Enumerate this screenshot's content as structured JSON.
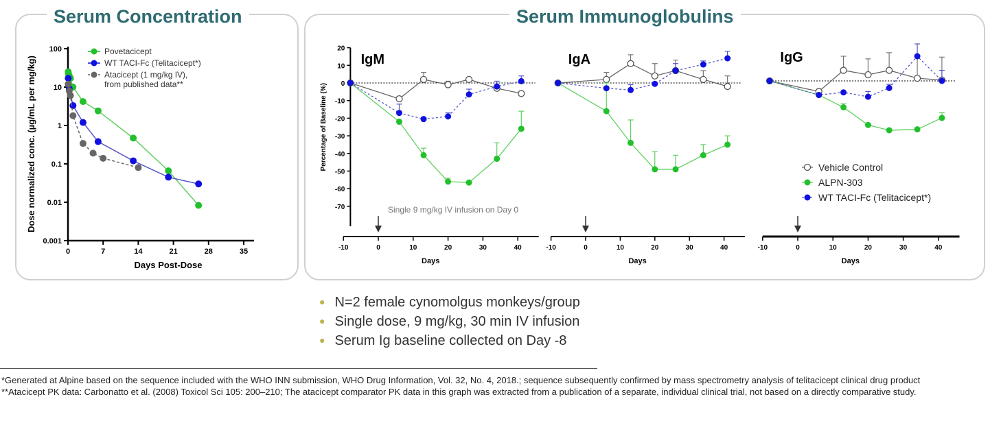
{
  "panels": {
    "left_title": "Serum Concentration",
    "right_title": "Serum Immunoglobulins"
  },
  "colors": {
    "green": "#22c02c",
    "blue": "#1010e0",
    "gray": "#666666",
    "title": "#2f6b72",
    "bullet": "#b8b24c"
  },
  "chart_data": [
    {
      "type": "line",
      "scale": "log",
      "xlabel": "Days Post-Dose",
      "ylabel": "Dose normalized conc. (µg/mL per mg/kg)",
      "xticks": [
        0,
        7,
        14,
        21,
        28,
        35
      ],
      "yticks": [
        0.001,
        0.01,
        0.1,
        1,
        10,
        100
      ],
      "ytick_labels": [
        "0.001",
        "0.01",
        "0.1",
        "1",
        "10",
        "100"
      ],
      "xlim": [
        0,
        37
      ],
      "ylim": [
        0.001,
        100
      ],
      "legend": "top-right",
      "series": [
        {
          "name": "Povetacicept",
          "color": "#22c02c",
          "dash": false,
          "x": [
            0.05,
            0.1,
            0.25,
            0.5,
            1,
            3,
            6,
            13,
            20,
            26
          ],
          "y": [
            25,
            22,
            20,
            17,
            10,
            4.2,
            2.4,
            0.47,
            0.066,
            0.0083
          ]
        },
        {
          "name": "WT TACI-Fc (Telitacicept*)",
          "color": "#1010e0",
          "dash": false,
          "x": [
            0.05,
            0.25,
            1,
            3,
            6,
            13,
            20,
            26
          ],
          "y": [
            17,
            9,
            3.3,
            1.2,
            0.38,
            0.12,
            0.045,
            0.03
          ]
        },
        {
          "name": "Atacicept (1 mg/kg IV),",
          "name2": "from published data**",
          "color": "#666666",
          "dash": true,
          "x": [
            0.05,
            0.25,
            0.5,
            1,
            3,
            5,
            7,
            14
          ],
          "y": [
            12,
            8,
            6,
            1.8,
            0.34,
            0.19,
            0.14,
            0.08
          ]
        }
      ]
    },
    {
      "type": "line",
      "title": "IgM",
      "xlabel": "Days",
      "ylabel": "Percentage of Baseline (%)",
      "xticks": [
        -10,
        0,
        10,
        20,
        30,
        40
      ],
      "yticks": [
        20,
        10,
        0,
        -10,
        -20,
        -30,
        -40,
        -50,
        -60,
        -70
      ],
      "ylim": [
        -70,
        20
      ],
      "annotation": "Single 9 mg/kg IV infusion on Day 0",
      "x": [
        -8,
        6,
        13,
        20,
        26,
        34,
        41
      ],
      "series": [
        {
          "name": "Vehicle Control",
          "y": [
            0,
            -9,
            2,
            -1,
            2,
            -3,
            -6
          ],
          "err": [
            0,
            0,
            4,
            2,
            0,
            0,
            0
          ]
        },
        {
          "name": "ALPN-303",
          "y": [
            0,
            -22,
            -41,
            -56,
            -56.5,
            -43,
            -26
          ],
          "err": [
            0,
            0,
            4,
            2,
            0,
            9,
            10
          ]
        },
        {
          "name": "WT TACI-Fc (Telitacicept*)",
          "y": [
            0,
            -17,
            -20.5,
            -19,
            -6.5,
            -2,
            1
          ],
          "err": [
            0,
            5,
            1,
            2,
            3,
            3,
            3
          ]
        }
      ]
    },
    {
      "type": "line",
      "title": "IgA",
      "xlabel": "Days",
      "xticks": [
        -10,
        0,
        10,
        20,
        30,
        40
      ],
      "ylim": [
        -70,
        20
      ],
      "x": [
        -8,
        6,
        13,
        20,
        26,
        34,
        41
      ],
      "series": [
        {
          "name": "Vehicle Control",
          "y": [
            0,
            2,
            11,
            4,
            7,
            2,
            -2
          ],
          "err": [
            0,
            4,
            5,
            7,
            6,
            5,
            6
          ]
        },
        {
          "name": "ALPN-303",
          "y": [
            0,
            -16,
            -34,
            -49,
            -49,
            -41,
            -35
          ],
          "err": [
            0,
            16,
            13,
            10,
            8,
            6,
            5
          ]
        },
        {
          "name": "WT TACI-Fc (Telitacicept*)",
          "y": [
            0,
            -3,
            -4,
            -0.5,
            7,
            10.5,
            14
          ],
          "err": [
            0,
            1,
            3,
            0,
            4,
            2,
            4
          ]
        }
      ]
    },
    {
      "type": "line",
      "title": "IgG",
      "xlabel": "Days",
      "xticks": [
        -10,
        0,
        10,
        20,
        30,
        40
      ],
      "ylim": [
        -70,
        20
      ],
      "legend": "bottom-right",
      "x": [
        -8,
        6,
        13,
        20,
        26,
        34,
        41
      ],
      "series": [
        {
          "name": "Vehicle Control",
          "y": [
            0,
            -6,
            6,
            3.5,
            6,
            1.5,
            0.5
          ],
          "err": [
            0,
            0,
            8,
            9,
            10,
            12,
            13
          ]
        },
        {
          "name": "ALPN-303",
          "y": [
            0,
            -8,
            -15,
            -25,
            -28,
            -27.5,
            -21
          ],
          "err": [
            0,
            0,
            2,
            0,
            0,
            0,
            3
          ]
        },
        {
          "name": "WT TACI-Fc (Telitacicept*)",
          "y": [
            0,
            -8,
            -6.5,
            -9,
            -4,
            14,
            0
          ],
          "err": [
            0,
            0,
            0,
            3,
            2,
            7,
            6
          ]
        }
      ]
    }
  ],
  "bullets": [
    "N=2 female cynomolgus monkeys/group",
    "Single dose, 9 mg/kg, 30 min IV infusion",
    "Serum Ig baseline collected on Day -8"
  ],
  "footnotes": [
    "*Generated at Alpine based on the sequence included with the WHO INN submission, WHO Drug Information, Vol. 32, No. 4, 2018.; sequence subsequently  confirmed by mass spectrometry analysis of telitacicept clinical drug product",
    "**Atacicept PK data: Carbonatto et al. (2008)  Toxicol Sci 105: 200–210; The atacicept comparator PK data in this graph was extracted  from a publication of a separate, individual clinical trial, not based on a directly comparative study."
  ]
}
